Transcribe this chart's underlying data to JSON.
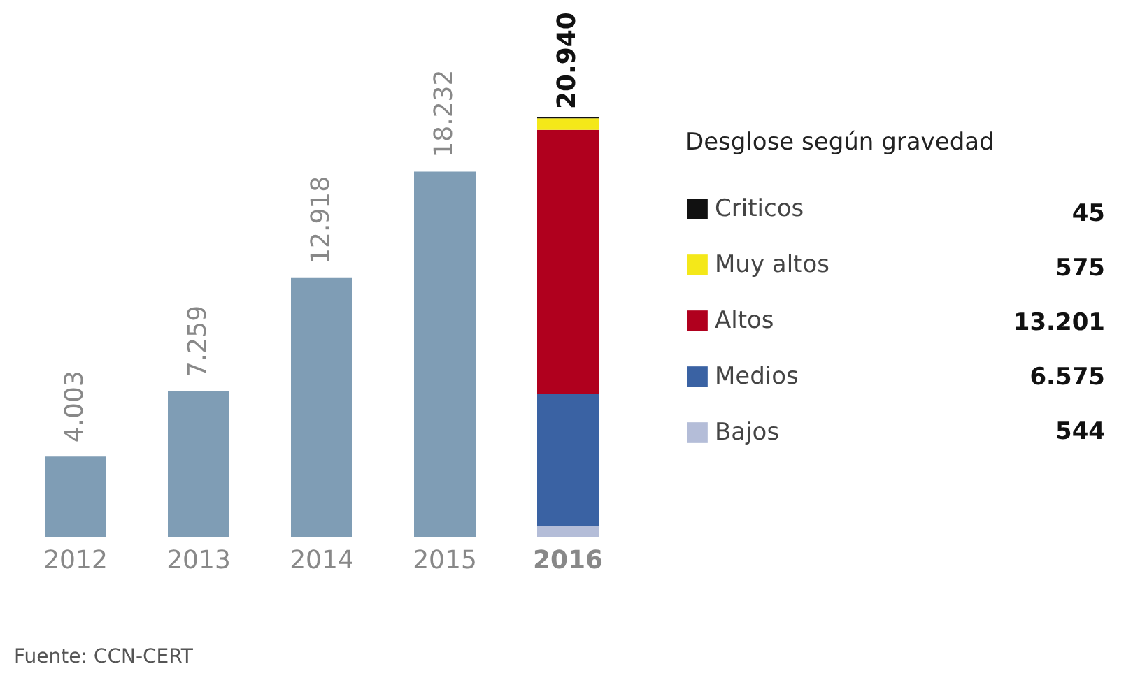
{
  "chart_data": {
    "type": "bar",
    "stacked": true,
    "categories": [
      "2012",
      "2013",
      "2014",
      "2015",
      "2016"
    ],
    "series": [
      {
        "color": "#7f9db5",
        "values": [
          4003,
          7259,
          12918,
          18232,
          null
        ],
        "value_labels": [
          "4.003",
          "7.259",
          "12.918",
          "18.232",
          null
        ]
      },
      {
        "name": "Bajos",
        "color": "#b4bdd8",
        "values": [
          null,
          null,
          null,
          null,
          544
        ]
      },
      {
        "name": "Medios",
        "color": "#3a62a3",
        "values": [
          null,
          null,
          null,
          null,
          6575
        ]
      },
      {
        "name": "Altos",
        "color": "#b0001e",
        "values": [
          null,
          null,
          null,
          null,
          13201
        ]
      },
      {
        "name": "Muy altos",
        "color": "#f4e819",
        "values": [
          null,
          null,
          null,
          null,
          575
        ]
      },
      {
        "name": "Criticos",
        "color": "#111111",
        "values": [
          null,
          null,
          null,
          null,
          45
        ]
      }
    ],
    "totals": [
      null,
      null,
      null,
      null,
      "20.940"
    ],
    "legend": "right",
    "legend_title": "Desglose según gravedad",
    "annotations": [
      "Fuente: CCN-CERT",
      "45",
      "575",
      "13.201",
      "6.575",
      "544"
    ]
  }
}
